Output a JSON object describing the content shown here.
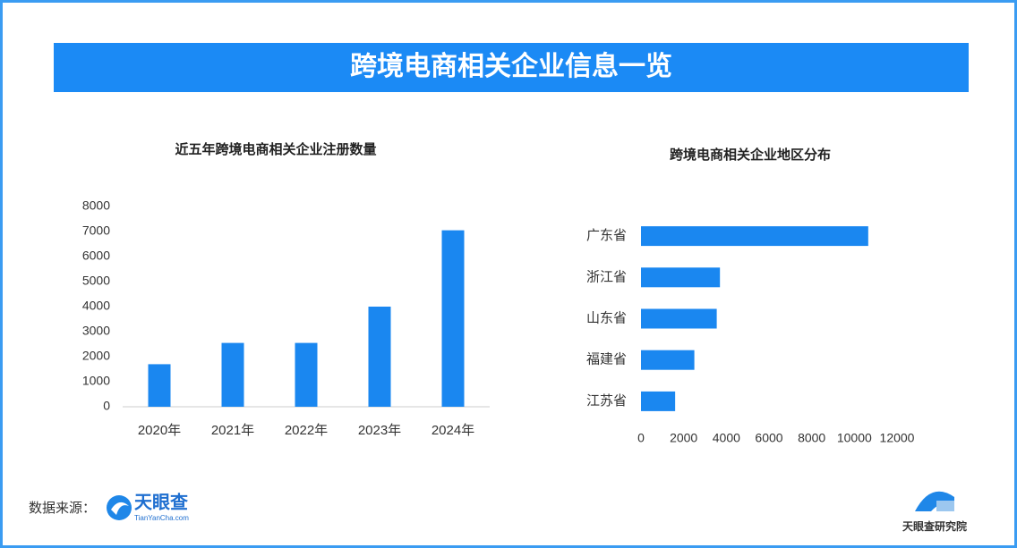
{
  "banner": "跨境电商相关企业信息一览",
  "chart_data": [
    {
      "type": "bar",
      "title": "近五年跨境电商相关企业注册数量",
      "categories": [
        "2020年",
        "2021年",
        "2022年",
        "2023年",
        "2024年"
      ],
      "values": [
        1700,
        2550,
        2550,
        4000,
        7050
      ],
      "color": "#1a87f0",
      "ylim": [
        0,
        8000
      ],
      "yticks": [
        0,
        1000,
        2000,
        3000,
        4000,
        5000,
        6000,
        7000,
        8000
      ],
      "grid": false
    },
    {
      "type": "barh",
      "title": "跨境电商相关企业地区分布",
      "categories": [
        "广东省",
        "浙江省",
        "山东省",
        "福建省",
        "江苏省"
      ],
      "values": [
        10650,
        3700,
        3550,
        2500,
        1600
      ],
      "color": "#1a87f0",
      "xlim": [
        0,
        12000
      ],
      "xticks": [
        0,
        2000,
        4000,
        6000,
        8000,
        10000,
        12000
      ],
      "grid": false
    }
  ],
  "source": {
    "label": "数据来源：",
    "logo": "天眼查",
    "logo_sub": "TianYanCha.com"
  },
  "institute": "天眼查研究院"
}
